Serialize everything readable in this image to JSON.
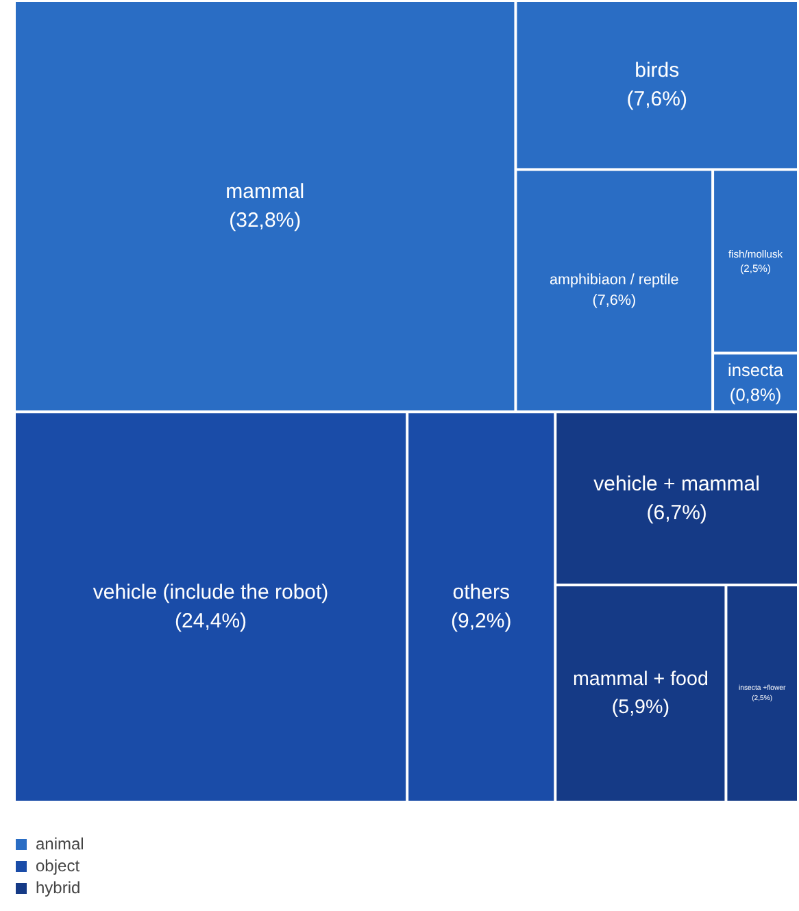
{
  "chart_data": {
    "type": "other",
    "categories": [
      "mammal",
      "birds",
      "amphibiaon / reptile",
      "fish/mollusk",
      "insecta",
      "vehicle (include the robot)",
      "others",
      "vehicle + mammal",
      "mammal + food",
      "insecta +flower"
    ],
    "series": [
      {
        "name": "animal",
        "color": "#2a6dc4",
        "values": [
          32.8,
          7.6,
          7.6,
          2.5,
          0.8,
          null,
          null,
          null,
          null,
          null
        ],
        "value_labels": [
          "(32,8%)",
          "(7,6%)",
          "(7,6%)",
          "(2,5%)",
          "(0,8%)",
          null,
          null,
          null,
          null,
          null
        ]
      },
      {
        "name": "object",
        "color": "#1a4ca8",
        "values": [
          null,
          null,
          null,
          null,
          null,
          24.4,
          9.2,
          null,
          null,
          null
        ],
        "value_labels": [
          null,
          null,
          null,
          null,
          null,
          "(24,4%)",
          "(9,2%)",
          null,
          null,
          null
        ]
      },
      {
        "name": "hybrid",
        "color": "#153a86",
        "values": [
          null,
          null,
          null,
          null,
          null,
          null,
          null,
          6.7,
          5.9,
          2.5
        ],
        "value_labels": [
          null,
          null,
          null,
          null,
          null,
          null,
          null,
          "(6,7%)",
          "(5,9%)",
          "(2,5%)"
        ]
      }
    ],
    "legend": "bottom left"
  }
}
